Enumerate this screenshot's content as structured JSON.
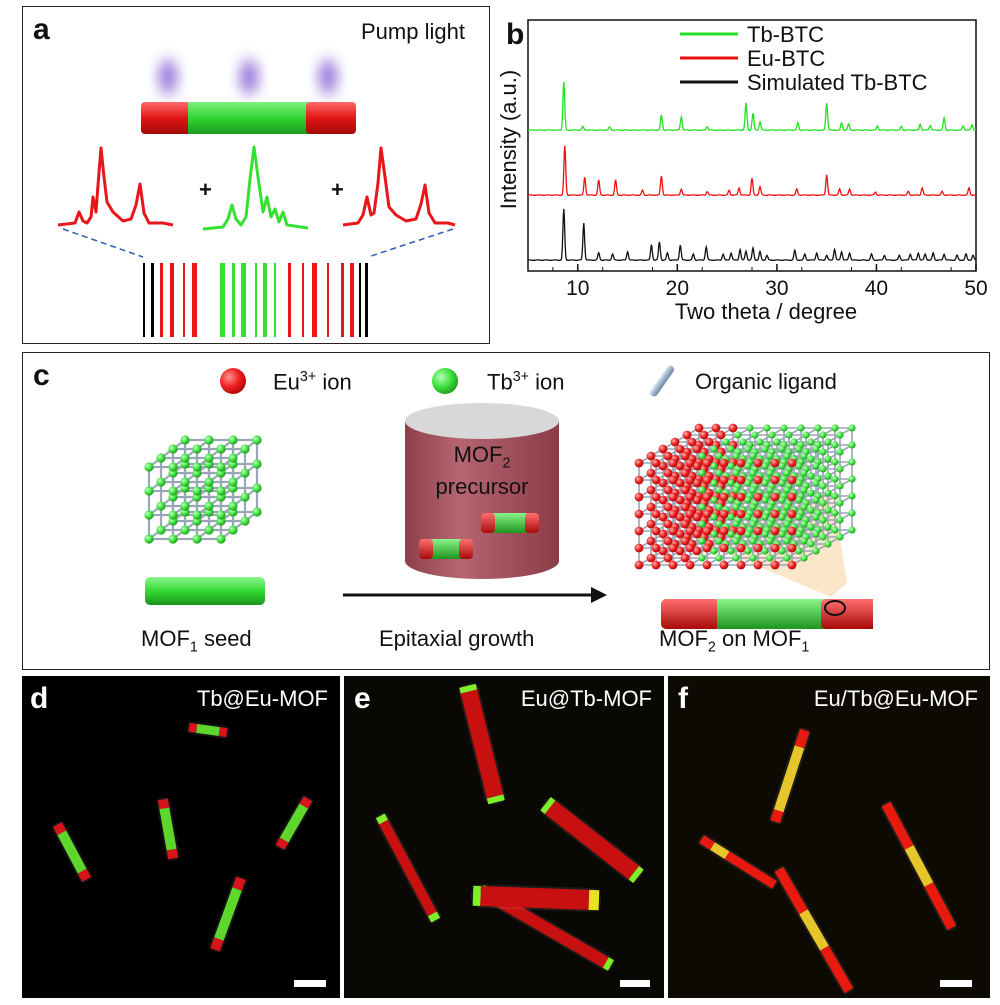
{
  "panel_a": {
    "label": "a",
    "pump_text": "Pump light",
    "plus_1": "+",
    "plus_2": "+"
  },
  "panel_b": {
    "label": "b",
    "chart_data": {
      "type": "line",
      "xlabel": "Two theta / degree",
      "ylabel": "Intensity (a.u.)",
      "xlim": [
        5,
        50
      ],
      "xticks": [
        10,
        20,
        30,
        40,
        50
      ],
      "legend_position": "top-right",
      "series": [
        {
          "name": "Tb-BTC",
          "color": "#22e022",
          "offset": 2.0,
          "peaks": [
            [
              8.6,
              0.8
            ],
            [
              10.5,
              0.06
            ],
            [
              13.2,
              0.05
            ],
            [
              18.4,
              0.25
            ],
            [
              20.4,
              0.22
            ],
            [
              23.0,
              0.06
            ],
            [
              26.9,
              0.45
            ],
            [
              27.6,
              0.28
            ],
            [
              28.3,
              0.14
            ],
            [
              32.1,
              0.12
            ],
            [
              35.0,
              0.45
            ],
            [
              36.5,
              0.12
            ],
            [
              37.2,
              0.1
            ],
            [
              40.1,
              0.07
            ],
            [
              42.5,
              0.06
            ],
            [
              44.4,
              0.1
            ],
            [
              45.4,
              0.08
            ],
            [
              46.8,
              0.2
            ],
            [
              48.7,
              0.07
            ],
            [
              49.6,
              0.09
            ]
          ]
        },
        {
          "name": "Eu-BTC",
          "color": "#ee1111",
          "offset": 1.0,
          "peaks": [
            [
              8.7,
              0.82
            ],
            [
              10.7,
              0.3
            ],
            [
              12.1,
              0.25
            ],
            [
              13.8,
              0.25
            ],
            [
              16.5,
              0.08
            ],
            [
              18.4,
              0.32
            ],
            [
              20.4,
              0.1
            ],
            [
              23.0,
              0.06
            ],
            [
              25.2,
              0.08
            ],
            [
              26.2,
              0.12
            ],
            [
              27.5,
              0.28
            ],
            [
              28.3,
              0.14
            ],
            [
              32.0,
              0.1
            ],
            [
              35.0,
              0.34
            ],
            [
              36.3,
              0.1
            ],
            [
              37.3,
              0.1
            ],
            [
              39.9,
              0.05
            ],
            [
              43.2,
              0.06
            ],
            [
              44.6,
              0.12
            ],
            [
              46.6,
              0.06
            ],
            [
              49.3,
              0.12
            ]
          ]
        },
        {
          "name": "Simulated Tb-BTC",
          "color": "#111111",
          "offset": 0.0,
          "peaks": [
            [
              8.6,
              0.85
            ],
            [
              10.6,
              0.62
            ],
            [
              12.1,
              0.12
            ],
            [
              13.5,
              0.1
            ],
            [
              15.0,
              0.14
            ],
            [
              17.4,
              0.26
            ],
            [
              18.2,
              0.3
            ],
            [
              19.0,
              0.12
            ],
            [
              20.3,
              0.25
            ],
            [
              21.6,
              0.1
            ],
            [
              22.9,
              0.22
            ],
            [
              24.6,
              0.1
            ],
            [
              25.4,
              0.12
            ],
            [
              26.3,
              0.18
            ],
            [
              26.9,
              0.15
            ],
            [
              27.6,
              0.2
            ],
            [
              28.3,
              0.14
            ],
            [
              29.0,
              0.08
            ],
            [
              31.8,
              0.16
            ],
            [
              32.8,
              0.1
            ],
            [
              34.0,
              0.12
            ],
            [
              35.0,
              0.08
            ],
            [
              35.8,
              0.18
            ],
            [
              36.5,
              0.14
            ],
            [
              37.3,
              0.12
            ],
            [
              39.5,
              0.1
            ],
            [
              40.8,
              0.08
            ],
            [
              42.3,
              0.08
            ],
            [
              43.4,
              0.1
            ],
            [
              44.2,
              0.12
            ],
            [
              44.9,
              0.1
            ],
            [
              45.7,
              0.12
            ],
            [
              46.8,
              0.1
            ],
            [
              48.1,
              0.08
            ],
            [
              49.0,
              0.1
            ],
            [
              49.7,
              0.08
            ]
          ]
        }
      ]
    }
  },
  "panel_c": {
    "label": "c",
    "legend_eu": "Eu",
    "legend_eu_sup": "3+",
    "legend_eu_suffix": " ion",
    "legend_tb": "Tb",
    "legend_tb_sup": "3+",
    "legend_tb_suffix": " ion",
    "legend_ligand": "Organic ligand",
    "precursor_line1": "MOF",
    "precursor_sub": "2",
    "precursor_line2": "precursor",
    "seed_caption": "MOF",
    "seed_sub": "1",
    "seed_suffix": " seed",
    "arrow_caption": "Epitaxial growth",
    "result_caption_a": "MOF",
    "result_sub_a": "2",
    "result_mid": " on MOF",
    "result_sub_b": "1"
  },
  "panel_d": {
    "label": "d",
    "title": "Tb@Eu-MOF"
  },
  "panel_e": {
    "label": "e",
    "title": "Eu@Tb-MOF"
  },
  "panel_f": {
    "label": "f",
    "title": "Eu/Tb@Eu-MOF"
  },
  "colors": {
    "red": "#e8151b",
    "green": "#33e133",
    "black": "#000000",
    "orange": "#f4a43c"
  }
}
